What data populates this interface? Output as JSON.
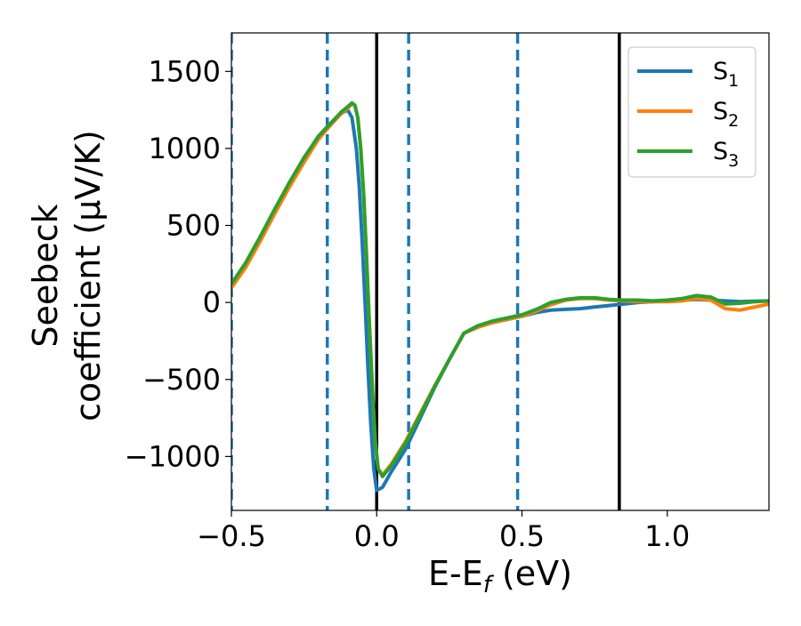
{
  "chart_data": {
    "type": "line",
    "title": "",
    "xlabel": "E-E_f (eV)",
    "xlabel_parts": {
      "main": "E-E",
      "sub": "f",
      "unit": " (eV)"
    },
    "ylabel_lines": [
      "Seebeck",
      "coefficient  (μV/K)"
    ],
    "xlim": [
      -0.5,
      1.35
    ],
    "ylim": [
      -1350,
      1750
    ],
    "xticks": [
      -0.5,
      0.0,
      0.5,
      1.0
    ],
    "xtick_labels": [
      "−0.5",
      "0.0",
      "0.5",
      "1.0"
    ],
    "yticks": [
      -1000,
      -500,
      0,
      500,
      1000,
      1500
    ],
    "ytick_labels": [
      "−1000",
      "−500",
      "0",
      "500",
      "1000",
      "1500"
    ],
    "legend_position": "top-right",
    "grid": false,
    "vlines": [
      {
        "x": -0.5,
        "style": "dashed",
        "color": "#1f77b4"
      },
      {
        "x": -0.17,
        "style": "dashed",
        "color": "#1f77b4"
      },
      {
        "x": 0.0,
        "style": "solid",
        "color": "#000000"
      },
      {
        "x": 0.11,
        "style": "dashed",
        "color": "#1f77b4"
      },
      {
        "x": 0.485,
        "style": "dashed",
        "color": "#1f77b4"
      },
      {
        "x": 0.835,
        "style": "solid",
        "color": "#000000"
      }
    ],
    "series": [
      {
        "name": "S",
        "subscript": "1",
        "color": "#1f77b4",
        "x": [
          -0.5,
          -0.45,
          -0.4,
          -0.35,
          -0.3,
          -0.25,
          -0.2,
          -0.15,
          -0.12,
          -0.1,
          -0.085,
          -0.07,
          -0.06,
          -0.05,
          -0.04,
          -0.03,
          -0.02,
          -0.01,
          0.0,
          0.02,
          0.05,
          0.1,
          0.15,
          0.2,
          0.25,
          0.3,
          0.35,
          0.4,
          0.45,
          0.5,
          0.55,
          0.6,
          0.65,
          0.7,
          0.75,
          0.8,
          0.85,
          0.9,
          0.95,
          1.0,
          1.05,
          1.1,
          1.15,
          1.2,
          1.25,
          1.3,
          1.35
        ],
        "y": [
          110,
          250,
          420,
          600,
          770,
          930,
          1080,
          1180,
          1230,
          1250,
          1200,
          1000,
          750,
          400,
          0,
          -420,
          -800,
          -1080,
          -1220,
          -1200,
          -1100,
          -950,
          -750,
          -550,
          -370,
          -200,
          -150,
          -130,
          -110,
          -90,
          -65,
          -50,
          -45,
          -40,
          -30,
          -20,
          -10,
          0,
          5,
          10,
          15,
          20,
          15,
          10,
          5,
          8,
          10
        ]
      },
      {
        "name": "S",
        "subscript": "2",
        "color": "#ff7f0e",
        "x": [
          -0.5,
          -0.45,
          -0.4,
          -0.35,
          -0.3,
          -0.25,
          -0.2,
          -0.15,
          -0.12,
          -0.1,
          -0.085,
          -0.075,
          -0.065,
          -0.055,
          -0.045,
          -0.035,
          -0.025,
          -0.015,
          -0.005,
          0.005,
          0.02,
          0.05,
          0.1,
          0.15,
          0.2,
          0.25,
          0.3,
          0.35,
          0.4,
          0.45,
          0.5,
          0.55,
          0.6,
          0.65,
          0.7,
          0.75,
          0.8,
          0.85,
          0.9,
          0.95,
          1.0,
          1.05,
          1.1,
          1.15,
          1.2,
          1.25,
          1.3,
          1.35
        ],
        "y": [
          95,
          230,
          400,
          580,
          750,
          910,
          1060,
          1170,
          1230,
          1260,
          1290,
          1280,
          1200,
          1000,
          700,
          300,
          -150,
          -550,
          -900,
          -1080,
          -1120,
          -1050,
          -900,
          -720,
          -540,
          -370,
          -200,
          -160,
          -130,
          -110,
          -90,
          -55,
          -15,
          15,
          25,
          25,
          15,
          10,
          5,
          5,
          5,
          10,
          25,
          15,
          -40,
          -50,
          -30,
          -10
        ]
      },
      {
        "name": "S",
        "subscript": "3",
        "color": "#2ca02c",
        "x": [
          -0.5,
          -0.45,
          -0.4,
          -0.35,
          -0.3,
          -0.25,
          -0.2,
          -0.15,
          -0.12,
          -0.1,
          -0.085,
          -0.075,
          -0.065,
          -0.055,
          -0.045,
          -0.035,
          -0.025,
          -0.015,
          -0.005,
          0.005,
          0.02,
          0.05,
          0.1,
          0.15,
          0.2,
          0.25,
          0.3,
          0.35,
          0.4,
          0.45,
          0.5,
          0.55,
          0.6,
          0.65,
          0.7,
          0.75,
          0.8,
          0.85,
          0.9,
          0.95,
          1.0,
          1.05,
          1.1,
          1.15,
          1.2,
          1.25,
          1.3,
          1.35
        ],
        "y": [
          120,
          260,
          430,
          610,
          780,
          940,
          1080,
          1180,
          1240,
          1270,
          1295,
          1280,
          1200,
          1000,
          700,
          300,
          -150,
          -550,
          -900,
          -1080,
          -1130,
          -1060,
          -910,
          -730,
          -545,
          -370,
          -200,
          -150,
          -120,
          -100,
          -80,
          -45,
          0,
          20,
          30,
          30,
          20,
          15,
          15,
          10,
          15,
          25,
          45,
          35,
          -10,
          -5,
          5,
          10
        ]
      }
    ]
  }
}
